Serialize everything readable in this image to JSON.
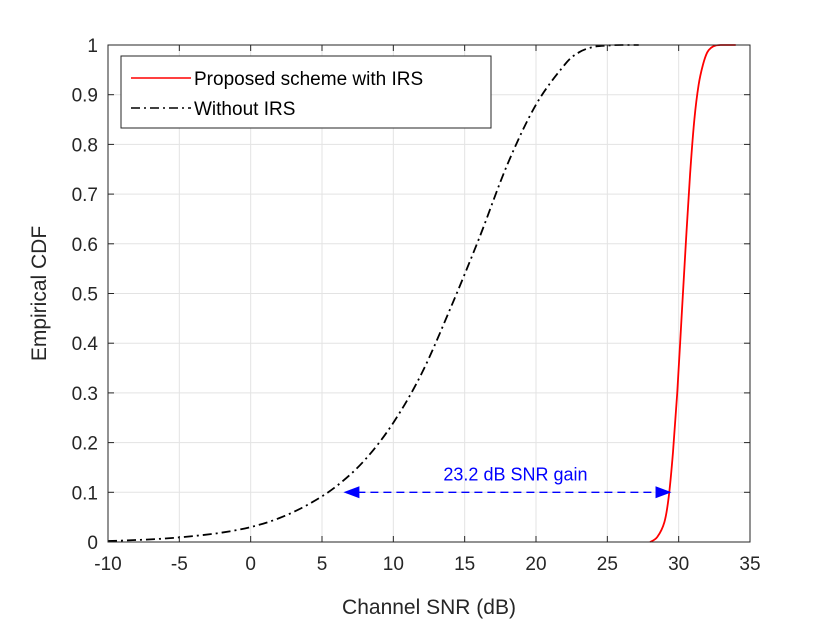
{
  "chart_data": {
    "type": "line",
    "title": "",
    "xlabel": "Channel SNR (dB)",
    "ylabel": "Empirical CDF",
    "xlim": [
      -10,
      35
    ],
    "ylim": [
      0,
      1
    ],
    "xticks": [
      -10,
      -5,
      0,
      5,
      10,
      15,
      20,
      25,
      30,
      35
    ],
    "yticks": [
      0,
      0.1,
      0.2,
      0.3,
      0.4,
      0.5,
      0.6,
      0.7,
      0.8,
      0.9,
      1
    ],
    "xtick_labels": [
      "-10",
      "-5",
      "0",
      "5",
      "10",
      "15",
      "20",
      "25",
      "30",
      "35"
    ],
    "ytick_labels": [
      "0",
      "0.1",
      "0.2",
      "0.3",
      "0.4",
      "0.5",
      "0.6",
      "0.7",
      "0.8",
      "0.9",
      "1"
    ],
    "grid": true,
    "legend_placement": "top-left",
    "series": [
      {
        "name": "Proposed scheme with IRS",
        "color": "#ff0000",
        "linestyle": "solid",
        "x": [
          28.0,
          28.5,
          29.0,
          29.3,
          29.6,
          29.9,
          30.2,
          30.5,
          30.8,
          31.1,
          31.4,
          31.7,
          32.0,
          32.3,
          32.6,
          33.0,
          33.5,
          34.0
        ],
        "y": [
          0.0,
          0.01,
          0.04,
          0.09,
          0.18,
          0.3,
          0.45,
          0.6,
          0.74,
          0.85,
          0.92,
          0.96,
          0.985,
          0.995,
          0.999,
          1.0,
          1.0,
          1.0
        ]
      },
      {
        "name": "Without IRS",
        "color": "#000000",
        "linestyle": "dashdot",
        "x": [
          -10,
          -8,
          -6,
          -4,
          -2,
          0,
          2,
          4,
          6,
          8,
          10,
          12,
          14,
          16,
          18,
          20,
          22,
          23,
          24,
          25,
          26,
          27.2
        ],
        "y": [
          0.002,
          0.004,
          0.007,
          0.012,
          0.019,
          0.03,
          0.048,
          0.075,
          0.112,
          0.165,
          0.24,
          0.34,
          0.47,
          0.61,
          0.76,
          0.88,
          0.96,
          0.985,
          0.996,
          0.999,
          1.0,
          1.0
        ]
      }
    ],
    "annotations": [
      {
        "text": "23.2 dB SNR gain",
        "color": "#0000ff",
        "arrow_from": [
          6.5,
          0.1
        ],
        "arrow_to": [
          29.5,
          0.1
        ],
        "arrow_style": "double-headed dashed"
      }
    ]
  }
}
